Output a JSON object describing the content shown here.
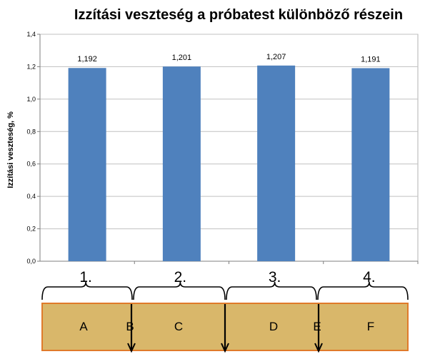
{
  "chart_data": {
    "type": "bar",
    "title": "Izzítási veszteség a próbatest különböző részein",
    "ylabel": "Izzítási veszteség, %",
    "xlabel": "",
    "categories": [
      "1.",
      "2.",
      "3.",
      "4."
    ],
    "values": [
      1.192,
      1.201,
      1.207,
      1.191
    ],
    "data_labels": [
      "1,192",
      "1,201",
      "1,207",
      "1,191"
    ],
    "ylim": [
      0,
      1.4
    ],
    "yticks": [
      0,
      0.2,
      0.4,
      0.6,
      0.8,
      1.0,
      1.2,
      1.4
    ],
    "ytick_labels": [
      "0,0",
      "0,2",
      "0,4",
      "0,6",
      "0,8",
      "1,0",
      "1,2",
      "1,4"
    ],
    "grid": true,
    "legend": "none",
    "bar_color": "#4f81bd"
  },
  "specimen": {
    "segments": [
      "A",
      "B",
      "C",
      "D",
      "E",
      "F"
    ],
    "fill_color": "#d9b76a",
    "border_color": "#e07a2a"
  }
}
